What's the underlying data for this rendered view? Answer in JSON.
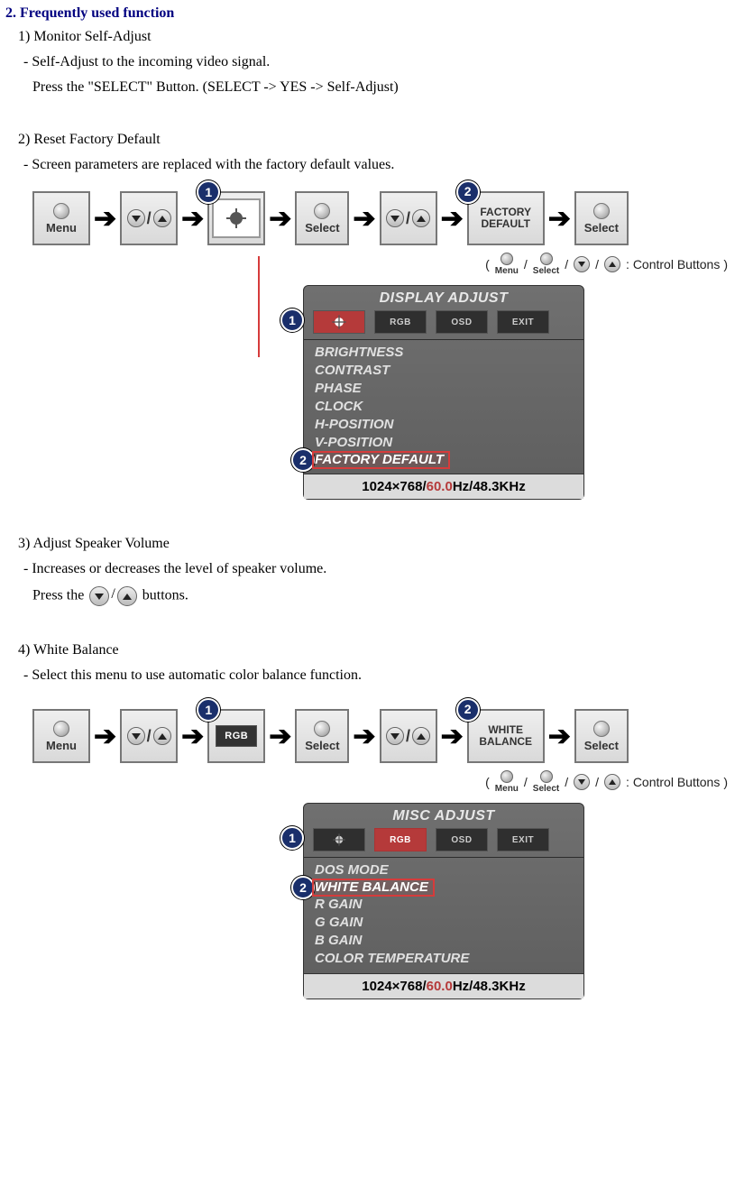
{
  "heading": "2. Frequently used function",
  "s1": {
    "title": "1) Monitor Self-Adjust",
    "l1": "- Self-Adjust to the incoming video signal.",
    "l2": "Press the \"SELECT\" Button. (SELECT -> YES -> Self-Adjust)"
  },
  "s2": {
    "title": "2) Reset Factory Default",
    "l1": "- Screen parameters are replaced with the factory default values."
  },
  "s3": {
    "title": "3) Adjust Speaker Volume",
    "l1": "- Increases or decreases the level of speaker volume.",
    "l2a": "Press the",
    "l2b": "buttons."
  },
  "s4": {
    "title": "4) White Balance",
    "l1": "- Select this menu to use automatic color balance function."
  },
  "flow_common": {
    "menu": "Menu",
    "select": "Select",
    "slash": "/"
  },
  "flow1": {
    "badge1": "1",
    "badge2": "2",
    "factory_l1": "FACTORY",
    "factory_l2": "DEFAULT"
  },
  "flow2": {
    "badge1": "1",
    "badge2": "2",
    "rgb": "RGB",
    "wb_l1": "WHITE",
    "wb_l2": "BALANCE"
  },
  "legend": {
    "menu": "Menu",
    "select": "Select",
    "label": ": Control Buttons"
  },
  "osd1": {
    "title": "DISPLAY ADJUST",
    "tabs": {
      "t2": "RGB",
      "t3": "OSD",
      "t4": "EXIT"
    },
    "badge1": "1",
    "badge2": "2",
    "items": [
      "BRIGHTNESS",
      "CONTRAST",
      "PHASE",
      "CLOCK",
      "H-POSITION",
      "V-POSITION",
      "FACTORY DEFAULT"
    ],
    "highlight_index": 6,
    "status_a": "1024×768/",
    "status_hz": "60.0",
    "status_b": "Hz/48.3KHz"
  },
  "osd2": {
    "title": "MISC ADJUST",
    "tabs": {
      "t2": "RGB",
      "t3": "OSD",
      "t4": "EXIT"
    },
    "badge1": "1",
    "badge2": "2",
    "items": [
      "DOS MODE",
      "WHITE BALANCE",
      "R GAIN",
      "G GAIN",
      "B GAIN",
      "COLOR TEMPERATURE"
    ],
    "highlight_index": 1,
    "status_a": "1024×768/",
    "status_hz": "60.0",
    "status_b": "Hz/48.3KHz"
  },
  "colors": {
    "heading": "#000080",
    "badge_bg": "#1a2f6b",
    "highlight": "#d63b3b",
    "osd_bg_top": "#707070",
    "osd_bg_bot": "#5e5e5e",
    "status_bg": "#dcdcdc",
    "tab_bg": "#2f2f2f",
    "tab_active": "#b53a3a"
  }
}
